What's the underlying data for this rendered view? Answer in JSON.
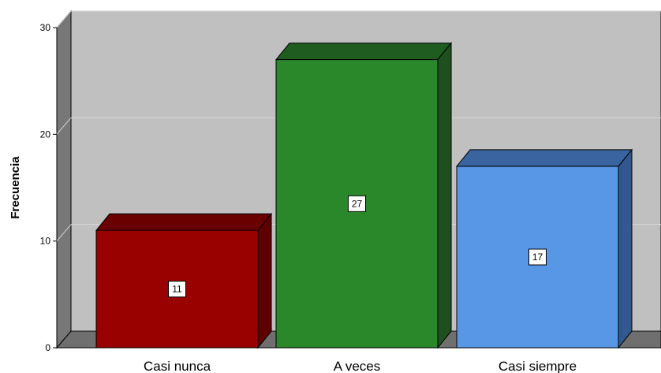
{
  "chart_data": {
    "type": "bar",
    "title": "",
    "xlabel": "",
    "ylabel": "Frecuencia",
    "categories": [
      "Casi nunca",
      "A veces",
      "Casi siempre"
    ],
    "values": [
      11,
      27,
      17
    ],
    "data_labels": [
      "11",
      "27",
      "17"
    ],
    "ylim": [
      0,
      30
    ],
    "yticks": [
      0,
      10,
      20,
      30
    ],
    "ytick_labels": [
      "0",
      "10",
      "20",
      "30"
    ],
    "grid": true,
    "style": "3d",
    "colors": {
      "front": [
        "#990000",
        "#2a882a",
        "#5896e6"
      ],
      "side": [
        "#5e0000",
        "#1f4f1f",
        "#33578f"
      ],
      "top": [
        "#6a0000",
        "#1f5c1f",
        "#3a64a0"
      ],
      "wall_back": "#c0c0c0",
      "wall_side": "#777777",
      "floor": "#6f6f6f",
      "grid": "#d6d6d6"
    }
  }
}
